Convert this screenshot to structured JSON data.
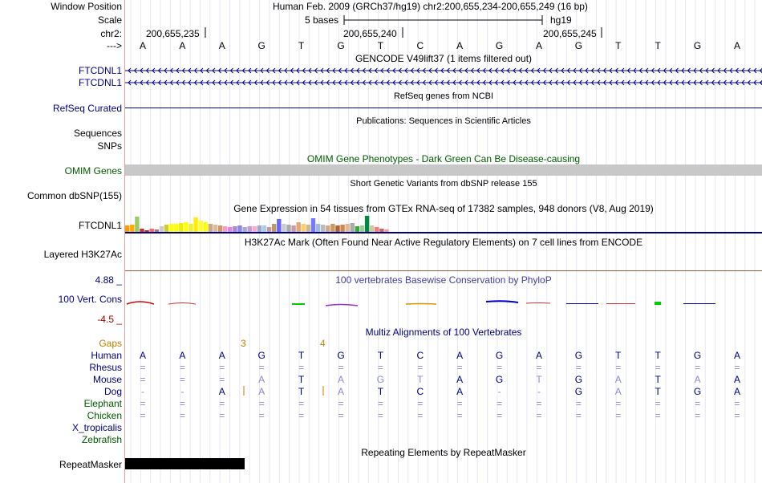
{
  "header": {
    "window_position_label": "Window Position",
    "scale_label": "Scale",
    "chr_label": "chr2:",
    "arrow_label": "--->",
    "assembly_text": "Human Feb. 2009 (GRCh37/hg19)   chr2:200,655,234-200,655,249 (16 bp)",
    "scale_text": "5 bases",
    "scale_db": "hg19",
    "positions": [
      "200,655,235",
      "200,655,240",
      "200,655,245"
    ]
  },
  "sequence": [
    "A",
    "A",
    "A",
    "G",
    "T",
    "G",
    "T",
    "C",
    "A",
    "G",
    "A",
    "G",
    "T",
    "T",
    "G",
    "A"
  ],
  "tracks": {
    "gencode": {
      "title": "GENCODE V49lift37 (1 items filtered out)",
      "labels": [
        "FTCDNL1",
        "FTCDNL1"
      ]
    },
    "refseq": {
      "title": "RefSeq genes from NCBI",
      "label": "RefSeq Curated"
    },
    "publications": {
      "title": "Publications: Sequences in Scientific Articles",
      "labels": [
        "Sequences",
        "SNPs"
      ]
    },
    "omim": {
      "title": "OMIM Gene Phenotypes - Dark Green Can Be Disease-causing",
      "label": "OMIM Genes"
    },
    "dbsnp": {
      "title": "Short Genetic Variants from dbSNP release 155",
      "label": "Common dbSNP(155)"
    },
    "gtex": {
      "title": "Gene Expression in 54 tissues from GTEx RNA-seq of 17382 samples, 948 donors (V8, Aug 2019)",
      "label": "FTCDNL1",
      "values": [
        0.4,
        0.45,
        0.95,
        0.2,
        0.1,
        0.2,
        0.15,
        0.35,
        0.45,
        0.5,
        0.5,
        0.55,
        0.6,
        0.5,
        0.9,
        0.7,
        0.6,
        0.5,
        0.45,
        0.4,
        0.35,
        0.3,
        0.35,
        0.4,
        0.3,
        0.35,
        0.35,
        0.4,
        0.4,
        0.3,
        0.5,
        0.8,
        0.5,
        0.45,
        0.4,
        0.6,
        0.5,
        0.45,
        0.85,
        0.5,
        0.45,
        0.4,
        0.5,
        0.4,
        0.45,
        0.5,
        0.55,
        0.35,
        0.4,
        1.0,
        0.4,
        0.3,
        0.2,
        0.15
      ],
      "colors": [
        "#ff9900",
        "#ffaa00",
        "#99cc66",
        "#cc3333",
        "#993333",
        "#ff6666",
        "#aa7777",
        "#cccccc",
        "#cccc33",
        "#ffff00",
        "#ffff00",
        "#eeee00",
        "#ffff00",
        "#eeee33",
        "#ffee00",
        "#ffff33",
        "#ffff00",
        "#ccaa88",
        "#ddbb99",
        "#cc9966",
        "#ff99cc",
        "#dd88dd",
        "#aa88cc",
        "#8888dd",
        "#aaaacc",
        "#cc99cc",
        "#ffaacc",
        "#99aacc",
        "#aaccee",
        "#cc9999",
        "#bb9966",
        "#6666ff",
        "#cccccc",
        "#aaaaaa",
        "#cc99aa",
        "#ddaa77",
        "#ffcc66",
        "#ccbb88",
        "#7777ff",
        "#99bbdd",
        "#bbbbbb",
        "#ccaa88",
        "#cc9966",
        "#aa6633",
        "#cc8855",
        "#ddbb99",
        "#aaaaaa",
        "#33aa33",
        "#99cc99",
        "#008844",
        "#cccc99",
        "#ff7777",
        "#cc6666",
        "#ff9999"
      ]
    },
    "h3k27ac": {
      "title": "H3K27Ac Mark (Often Found Near Active Regulatory Elements) on 7 cell lines from ENCODE",
      "label": "Layered H3K27Ac"
    },
    "cons": {
      "title": "100 vertebrates Basewise Conservation by PhyloP",
      "label": "100 Vert. Cons",
      "max": "4.88 _",
      "min": "-4.5 _"
    },
    "multiz": {
      "title": "Multiz Alignments of 100 Vertebrates",
      "gaps_label": "Gaps",
      "gap_counts": [
        "3",
        "4"
      ],
      "species": [
        "Human",
        "Rhesus",
        "Mouse",
        "Dog",
        "Elephant",
        "Chicken",
        "X_tropicalis",
        "Zebrafish"
      ],
      "rows": {
        "Rhesus": [
          "=",
          "=",
          "=",
          "=",
          "=",
          "=",
          "=",
          "=",
          "=",
          "=",
          "=",
          "=",
          "=",
          "=",
          "=",
          "="
        ],
        "Mouse": [
          "=",
          "=",
          "=",
          "A",
          "T",
          "A",
          "G",
          "T",
          "A",
          "G",
          "T",
          "G",
          "A",
          "T",
          "A",
          "A"
        ],
        "Dog": [
          "-",
          "-",
          "A",
          "A",
          "T",
          "A",
          "T",
          "C",
          "A",
          "-",
          "-",
          "G",
          "A",
          "T",
          "G",
          "A"
        ],
        "Elephant": [
          "=",
          "=",
          "=",
          "=",
          "=",
          "=",
          "=",
          "=",
          "=",
          "=",
          "=",
          "=",
          "=",
          "=",
          "=",
          "="
        ],
        "Chicken": [
          "=",
          "=",
          "=",
          "=",
          "=",
          "=",
          "=",
          "=",
          "=",
          "=",
          "=",
          "=",
          "=",
          "=",
          "=",
          "="
        ]
      }
    },
    "repeatmasker": {
      "title": "Repeating Elements by RepeatMasker",
      "label": "RepeatMasker"
    }
  },
  "colors": {
    "navy": "#000080",
    "green": "#005a00",
    "orange": "#c08000",
    "omim_bar": "#c8c8c8",
    "gtex_line": "#000080",
    "h3k_line": "#9a5a3a",
    "cons_title": "#4040a0",
    "cons_min": "#a00000"
  }
}
